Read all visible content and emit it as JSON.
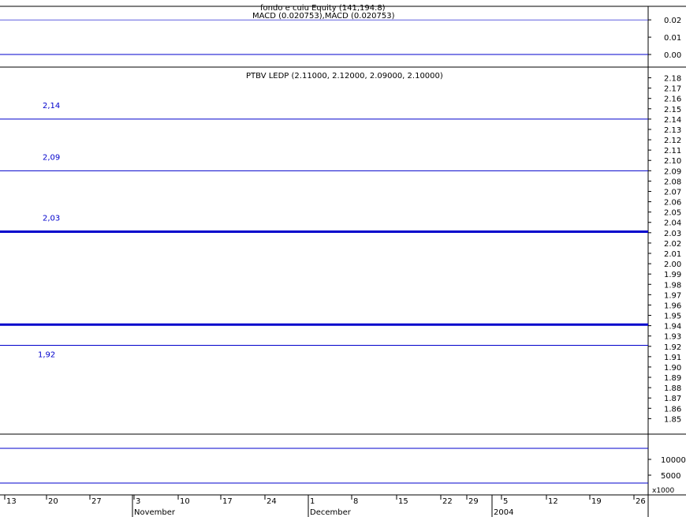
{
  "chart_data": [
    {
      "type": "line",
      "panel": "macd",
      "title": "MACD (0.020753),MACD (0.020753)",
      "overlay_text": "fondo e cuiu Equity (141,194.8)",
      "y_ticks": [
        "0.02",
        "0.01",
        "0.00"
      ],
      "ylim": [
        -0.005,
        0.026
      ],
      "histogram_color": "#0000cc",
      "macd_color": "#cc0000",
      "signal_color": "#008800"
    },
    {
      "type": "candlestick",
      "panel": "price",
      "title": "PTBV LEDP (2.11000, 2.12000, 2.09000, 2.10000)",
      "ylim": [
        1.835,
        2.185
      ],
      "y_ticks": [
        "2.18",
        "2.17",
        "2.16",
        "2.15",
        "2.14",
        "2.13",
        "2.12",
        "2.11",
        "2.10",
        "2.09",
        "2.08",
        "2.07",
        "2.06",
        "2.05",
        "2.04",
        "2.03",
        "2.02",
        "2.01",
        "2.00",
        "1.99",
        "1.98",
        "1.97",
        "1.96",
        "1.95",
        "1.94",
        "1.93",
        "1.92",
        "1.91",
        "1.90",
        "1.89",
        "1.88",
        "1.87",
        "1.86",
        "1.85"
      ],
      "levels": [
        {
          "label": "2,14",
          "value": 2.14,
          "color": "#0000cc",
          "style": "thin"
        },
        {
          "label": "2,09",
          "value": 2.09,
          "color": "#0000cc",
          "style": "thin"
        },
        {
          "label": "2,03",
          "value": 2.031,
          "color": "#0000cc",
          "style": "thick"
        },
        {
          "label": "",
          "value": 1.941,
          "color": "#0000cc",
          "style": "thick"
        },
        {
          "label": "1,92",
          "value": 1.921,
          "color": "#0000cc",
          "style": "thin"
        }
      ],
      "up_color": "#ffffff",
      "down_color": "#ff0000"
    },
    {
      "type": "bar",
      "panel": "volume",
      "y_ticks": [
        "10000",
        "5000"
      ],
      "ylim": [
        0,
        16000
      ],
      "multiplier_label": "x1000",
      "bar_color": "#0000cc"
    }
  ],
  "x_axis": {
    "day_labels": [
      "13",
      "20",
      "27",
      "3",
      "10",
      "17",
      "24",
      "1",
      "8",
      "15",
      "22",
      "29",
      "5",
      "12",
      "19",
      "26"
    ],
    "month_labels": [
      "November",
      "December",
      "2004"
    ]
  }
}
